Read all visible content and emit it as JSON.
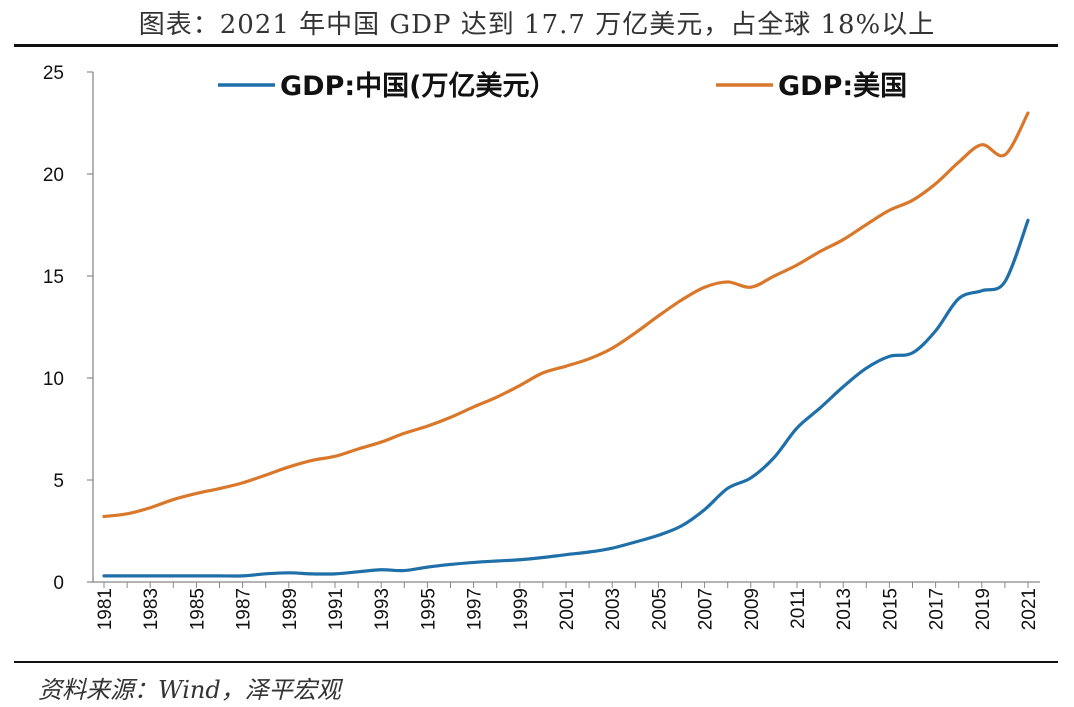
{
  "header": {
    "title": "图表：2021 年中国 GDP 达到 17.7 万亿美元，占全球 18%以上"
  },
  "footer": {
    "source": "资料来源：Wind，泽平宏观"
  },
  "colors": {
    "china": "#1F6FA8",
    "us": "#D9772A",
    "axis": "#888888"
  },
  "chart_data": {
    "type": "line",
    "title": "",
    "xlabel": "",
    "ylabel": "",
    "ylim": [
      0,
      25
    ],
    "yticks": [
      "0",
      "5",
      "10",
      "15",
      "20",
      "25"
    ],
    "x_tick_labels": [
      "1981",
      "1983",
      "1985",
      "1987",
      "1989",
      "1991",
      "1993",
      "1995",
      "1997",
      "1999",
      "2001",
      "2003",
      "2005",
      "2007",
      "2009",
      "2011",
      "2013",
      "2015",
      "2017",
      "2019",
      "2021"
    ],
    "x": [
      1981,
      1982,
      1983,
      1984,
      1985,
      1986,
      1987,
      1988,
      1989,
      1990,
      1991,
      1992,
      1993,
      1994,
      1995,
      1996,
      1997,
      1998,
      1999,
      2000,
      2001,
      2002,
      2003,
      2004,
      2005,
      2006,
      2007,
      2008,
      2009,
      2010,
      2011,
      2012,
      2013,
      2014,
      2015,
      2016,
      2017,
      2018,
      2019,
      2020,
      2021
    ],
    "legend_position": "top",
    "series": [
      {
        "name": "GDP:中国(万亿美元）",
        "values": [
          0.3,
          0.3,
          0.3,
          0.3,
          0.3,
          0.3,
          0.3,
          0.4,
          0.45,
          0.4,
          0.4,
          0.5,
          0.6,
          0.56,
          0.73,
          0.86,
          0.96,
          1.03,
          1.09,
          1.2,
          1.34,
          1.47,
          1.66,
          1.96,
          2.29,
          2.75,
          3.55,
          4.59,
          5.1,
          6.09,
          7.55,
          8.53,
          9.57,
          10.48,
          11.06,
          11.23,
          12.31,
          13.89,
          14.28,
          14.72,
          17.73
        ]
      },
      {
        "name": "GDP:美国",
        "values": [
          3.21,
          3.34,
          3.64,
          4.04,
          4.34,
          4.58,
          4.86,
          5.24,
          5.64,
          5.96,
          6.16,
          6.52,
          6.86,
          7.29,
          7.64,
          8.07,
          8.58,
          9.06,
          9.63,
          10.25,
          10.58,
          10.94,
          11.46,
          12.21,
          13.04,
          13.82,
          14.45,
          14.71,
          14.45,
          14.99,
          15.54,
          16.2,
          16.78,
          17.52,
          18.22,
          18.71,
          19.52,
          20.58,
          21.43,
          20.94,
          22.99
        ]
      }
    ]
  }
}
